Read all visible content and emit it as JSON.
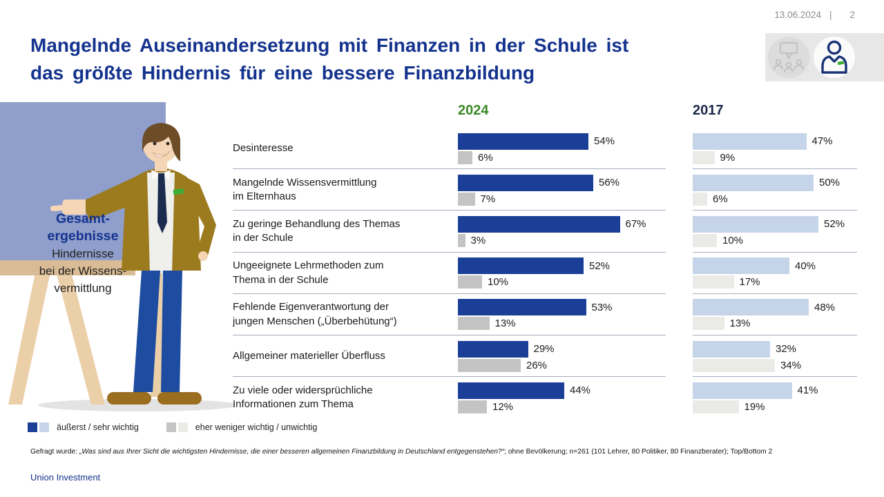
{
  "page": {
    "date": "13.06.2024",
    "divider": "|",
    "page_number": "2",
    "brand": "Union Investment"
  },
  "title": {
    "line1": "Mangelnde Auseinandersetzung mit Finanzen in der Schule ist",
    "line2": "das größte Hindernis für eine bessere Finanzbildung",
    "color": "#14338e"
  },
  "header_icons": [
    {
      "name": "audience-chat-icon",
      "state": "inactive"
    },
    {
      "name": "person-icon",
      "state": "active"
    }
  ],
  "board": {
    "title_line1": "Gesamt-",
    "title_line2": "ergebnisse",
    "subtitle_line1": "Hindernisse",
    "subtitle_line2": "bei der Wissens-",
    "subtitle_line3": "vermittlung"
  },
  "chart_data": {
    "type": "bar",
    "orientation": "horizontal",
    "unit": "%",
    "xlim": [
      0,
      100
    ],
    "grid": false,
    "column_headers": [
      {
        "label": "2024",
        "color": "#3a8a26"
      },
      {
        "label": "2017",
        "color": "#1a2746"
      }
    ],
    "categories": [
      "Desinteresse",
      "Mangelnde Wissensvermittlung\nim Elternhaus",
      "Zu geringe Behandlung des Themas\nin der Schule",
      "Ungeeignete Lehrmethoden zum\nThema in der Schule",
      "Fehlende Eigenverantwortung der\njungen Menschen („Überbehütung“)",
      "Allgemeiner materieller Überfluss",
      "Zu viele oder widersprüchliche\nInformationen zum Thema"
    ],
    "series": [
      {
        "year": "2024",
        "name": "äußerst / sehr wichtig",
        "color": "#1b3f97",
        "values": [
          54,
          56,
          67,
          52,
          53,
          29,
          44
        ]
      },
      {
        "year": "2024",
        "name": "eher weniger wichtig / unwichtig",
        "color": "#c4c4c4",
        "values": [
          6,
          7,
          3,
          10,
          13,
          26,
          12
        ]
      },
      {
        "year": "2017",
        "name": "äußerst / sehr wichtig",
        "color": "#c6d4ea",
        "values": [
          47,
          50,
          52,
          40,
          48,
          32,
          41
        ]
      },
      {
        "year": "2017",
        "name": "eher weniger wichtig / unwichtig",
        "color": "#eaeae7",
        "values": [
          9,
          6,
          10,
          17,
          13,
          34,
          19
        ]
      }
    ]
  },
  "legend": {
    "items": [
      {
        "label": "äußerst / sehr wichtig",
        "colors": [
          "#1b3f97",
          "#c6d4ea"
        ]
      },
      {
        "label": "eher weniger wichtig / unwichtig",
        "colors": [
          "#c4c4c4",
          "#eaeae7"
        ]
      }
    ]
  },
  "footnote": {
    "prefix": "Gefragt wurde: ",
    "question": "„Was sind aus Ihrer Sicht die wichtigsten Hindernisse, die einer besseren allgemeinen Finanzbildung in Deutschland entgegenstehen?“",
    "rest": "; ohne Bevölkerung; n=261 (101 Lehrer, 80 Politiker,  80 Finanzberater); Top/Bottom 2"
  }
}
